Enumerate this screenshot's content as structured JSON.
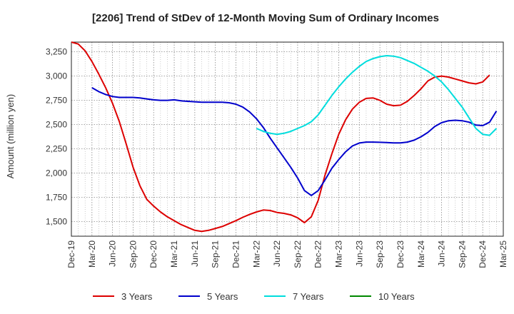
{
  "chart_data": {
    "type": "line",
    "title": "[2206]  Trend of StDev of 12-Month Moving Sum of Ordinary Incomes",
    "xlabel": "",
    "ylabel": "Amount (million yen)",
    "ylim": [
      1350,
      3350
    ],
    "yticks": [
      1500,
      1750,
      2000,
      2250,
      2500,
      2750,
      3000,
      3250
    ],
    "ytick_labels": [
      "1,500",
      "1,750",
      "2,000",
      "2,250",
      "2,500",
      "2,750",
      "3,000",
      "3,250"
    ],
    "xtick_labels": [
      "Dec-19",
      "Mar-20",
      "Jun-20",
      "Sep-20",
      "Dec-20",
      "Mar-21",
      "Jun-21",
      "Sep-21",
      "Dec-21",
      "Mar-22",
      "Jun-22",
      "Sep-22",
      "Dec-22",
      "Mar-23",
      "Jun-23",
      "Sep-23",
      "Dec-23",
      "Mar-24",
      "Jun-24",
      "Sep-24",
      "Dec-24",
      "Mar-25"
    ],
    "grid": true,
    "legend_position": "bottom",
    "series": [
      {
        "name": "3 Years",
        "color": "#dd0000",
        "start": "Dec-19",
        "values": [
          3350,
          3330,
          3260,
          3150,
          3020,
          2880,
          2720,
          2530,
          2300,
          2060,
          1870,
          1730,
          1660,
          1600,
          1550,
          1510,
          1470,
          1440,
          1410,
          1400,
          1410,
          1430,
          1450,
          1480,
          1510,
          1545,
          1575,
          1600,
          1620,
          1615,
          1595,
          1585,
          1570,
          1540,
          1490,
          1550,
          1720,
          1980,
          2200,
          2400,
          2550,
          2660,
          2730,
          2770,
          2775,
          2750,
          2710,
          2695,
          2700,
          2740,
          2800,
          2870,
          2950,
          2990,
          3000,
          2990,
          2970,
          2950,
          2930,
          2920,
          2940,
          3010
        ]
      },
      {
        "name": "5 Years",
        "color": "#0000cc",
        "start": "Mar-20",
        "values": [
          2880,
          2840,
          2810,
          2790,
          2780,
          2780,
          2780,
          2775,
          2765,
          2755,
          2750,
          2750,
          2755,
          2745,
          2740,
          2735,
          2730,
          2730,
          2730,
          2730,
          2725,
          2710,
          2680,
          2630,
          2560,
          2470,
          2360,
          2260,
          2160,
          2060,
          1950,
          1820,
          1770,
          1820,
          1930,
          2050,
          2140,
          2220,
          2280,
          2310,
          2320,
          2320,
          2318,
          2315,
          2312,
          2312,
          2320,
          2340,
          2375,
          2420,
          2480,
          2520,
          2540,
          2545,
          2540,
          2525,
          2495,
          2490,
          2525,
          2640
        ]
      },
      {
        "name": "7 Years",
        "color": "#00dddd",
        "start": "Mar-22",
        "values": [
          2460,
          2430,
          2410,
          2400,
          2410,
          2430,
          2460,
          2490,
          2530,
          2600,
          2700,
          2800,
          2890,
          2970,
          3040,
          3100,
          3150,
          3180,
          3200,
          3210,
          3205,
          3190,
          3160,
          3130,
          3090,
          3050,
          3000,
          2940,
          2860,
          2770,
          2680,
          2570,
          2460,
          2400,
          2390,
          2460
        ]
      },
      {
        "name": "10 Years",
        "color": "#008800",
        "start": "Dec-24",
        "values": []
      }
    ]
  }
}
